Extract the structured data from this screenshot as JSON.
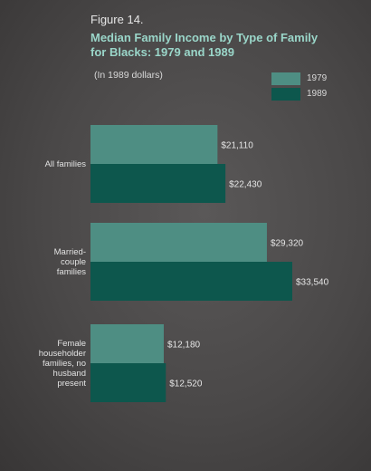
{
  "figure": {
    "label": "Figure 14.",
    "title": "Median Family Income by Type of Family for Blacks: 1979 and 1989",
    "subtitle": "(In 1989 dollars)"
  },
  "legend": [
    {
      "name": "1979",
      "color": "#4e8e83"
    },
    {
      "name": "1989",
      "color": "#0d574d"
    }
  ],
  "chart_data": {
    "type": "bar",
    "orientation": "horizontal",
    "title": "Median Family Income by Type of Family for Blacks: 1979 and 1989",
    "subtitle": "(In 1989 dollars)",
    "categories": [
      "All families",
      "Married-couple families",
      "Female householder families, no husband present"
    ],
    "category_lines": [
      [
        "All families"
      ],
      [
        "Married-",
        "couple",
        "families"
      ],
      [
        "Female",
        "householder",
        "families, no",
        "husband",
        "present"
      ]
    ],
    "series": [
      {
        "name": "1979",
        "color": "#4e8e83",
        "values": [
          21110,
          29320,
          12180
        ],
        "labels": [
          "$21,110",
          "$29,320",
          "$12,180"
        ]
      },
      {
        "name": "1989",
        "color": "#0d574d",
        "values": [
          22430,
          33540,
          12520
        ],
        "labels": [
          "$22,430",
          "$33,540",
          "$12,520"
        ]
      }
    ],
    "legend_position": "top-right",
    "grid": false
  }
}
